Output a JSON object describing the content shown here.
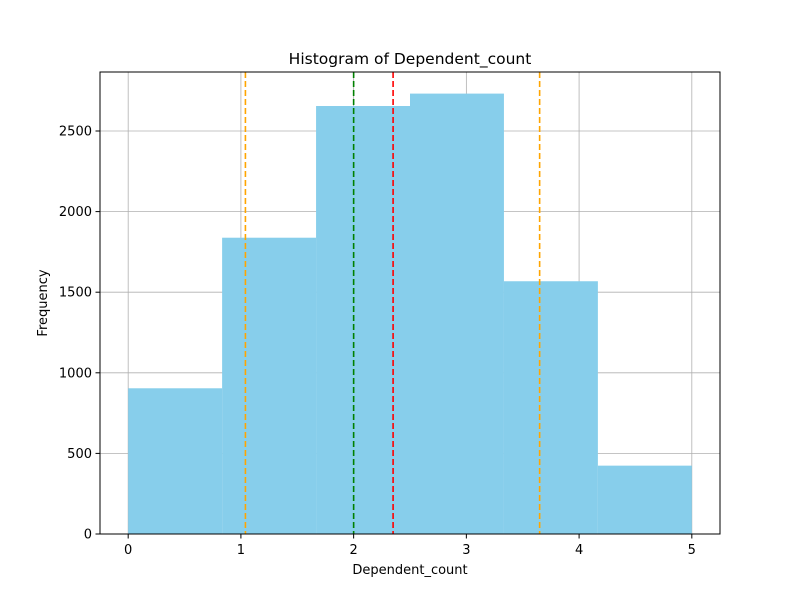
{
  "chart_data": {
    "type": "bar",
    "subtype": "histogram",
    "title": "Histogram of Dependent_count",
    "xlabel": "Dependent_count",
    "ylabel": "Frequency",
    "xlim": [
      -0.25,
      5.25
    ],
    "ylim": [
      0,
      2866
    ],
    "x_ticks": [
      0,
      1,
      2,
      3,
      4,
      5
    ],
    "y_ticks": [
      0,
      500,
      1000,
      1500,
      2000,
      2500
    ],
    "grid": true,
    "bar_color": "#87CEEB",
    "bins": [
      {
        "start": 0.0,
        "end": 0.8333,
        "count": 904
      },
      {
        "start": 0.8333,
        "end": 1.6667,
        "count": 1838
      },
      {
        "start": 1.6667,
        "end": 2.5,
        "count": 2655
      },
      {
        "start": 2.5,
        "end": 3.3333,
        "count": 2732
      },
      {
        "start": 3.3333,
        "end": 4.1667,
        "count": 1568
      },
      {
        "start": 4.1667,
        "end": 5.0,
        "count": 424
      }
    ],
    "reference_lines": [
      {
        "x": 1.04,
        "color": "#FFA500",
        "style": "dashed"
      },
      {
        "x": 2.0,
        "color": "#008000",
        "style": "dashed"
      },
      {
        "x": 2.35,
        "color": "#FF0000",
        "style": "dashed"
      },
      {
        "x": 3.65,
        "color": "#FFA500",
        "style": "dashed"
      }
    ]
  }
}
